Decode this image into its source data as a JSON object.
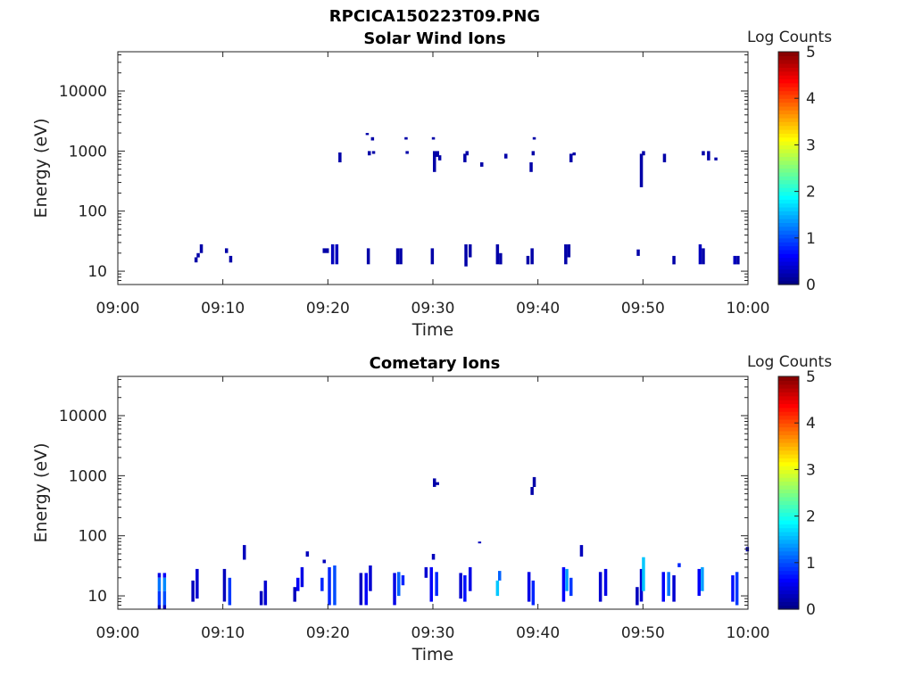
{
  "figure": {
    "title": "RPCICA150223T09.PNG"
  },
  "chart_data": [
    {
      "type": "heatmap",
      "title": "Solar Wind Ions",
      "xlabel": "Time",
      "ylabel": "Energy (eV)",
      "x_ticks": [
        "09:00",
        "09:10",
        "09:20",
        "09:30",
        "09:40",
        "09:50",
        "10:00"
      ],
      "y_ticks": [
        "10",
        "100",
        "1000",
        "10000"
      ],
      "x_range_minutes": [
        0,
        60
      ],
      "y_range": [
        6,
        45000
      ],
      "y_scale": "log",
      "colorbar": {
        "label": "Log Counts",
        "ticks": [
          "0",
          "1",
          "2",
          "3",
          "4",
          "5"
        ],
        "range": [
          0,
          5
        ],
        "colormap": "jet"
      },
      "cells": [
        [
          7.3,
          14,
          17,
          0.2
        ],
        [
          7.5,
          17,
          20,
          0.2
        ],
        [
          7.8,
          20,
          28,
          0.2
        ],
        [
          10.2,
          20,
          24,
          0.2
        ],
        [
          10.6,
          14,
          18,
          0.2
        ],
        [
          19.5,
          20,
          24,
          0.2
        ],
        [
          19.8,
          20,
          24,
          0.2
        ],
        [
          20.3,
          13,
          28,
          0.3
        ],
        [
          20.7,
          13,
          28,
          0.3
        ],
        [
          21.0,
          650,
          950,
          0.2
        ],
        [
          23.7,
          13,
          24,
          0.2
        ],
        [
          23.8,
          850,
          1000,
          0.2
        ],
        [
          23.6,
          1850,
          2000,
          0.2
        ],
        [
          24.1,
          1500,
          1700,
          0.2
        ],
        [
          24.2,
          900,
          1000,
          0.2
        ],
        [
          26.5,
          13,
          24,
          0.2
        ],
        [
          26.8,
          13,
          24,
          0.2
        ],
        [
          27.3,
          1550,
          1700,
          0.2
        ],
        [
          27.4,
          900,
          1000,
          0.2
        ],
        [
          29.8,
          13,
          24,
          0.2
        ],
        [
          29.9,
          1550,
          1700,
          0.2
        ],
        [
          30.0,
          450,
          1000,
          0.2
        ],
        [
          30.3,
          800,
          1000,
          0.2
        ],
        [
          30.5,
          700,
          850,
          0.2
        ],
        [
          33.0,
          12,
          28,
          0.2
        ],
        [
          33.4,
          17,
          28,
          0.2
        ],
        [
          32.9,
          650,
          900,
          0.2
        ],
        [
          33.1,
          850,
          1000,
          0.2
        ],
        [
          34.5,
          550,
          650,
          0.2
        ],
        [
          36.0,
          13,
          28,
          0.2
        ],
        [
          36.3,
          13,
          20,
          0.2
        ],
        [
          36.8,
          750,
          900,
          0.2
        ],
        [
          38.9,
          13,
          18,
          0.2
        ],
        [
          39.3,
          13,
          24,
          0.2
        ],
        [
          39.2,
          450,
          650,
          0.2
        ],
        [
          39.4,
          850,
          1000,
          0.2
        ],
        [
          39.5,
          1550,
          1700,
          0.2
        ],
        [
          42.5,
          13,
          28,
          0.2
        ],
        [
          42.8,
          17,
          28,
          0.2
        ],
        [
          43.0,
          650,
          900,
          0.2
        ],
        [
          43.3,
          850,
          950,
          0.2
        ],
        [
          49.4,
          18,
          23,
          0.2
        ],
        [
          49.7,
          250,
          900,
          0.2
        ],
        [
          49.9,
          850,
          1000,
          0.2
        ],
        [
          51.9,
          650,
          900,
          0.2
        ],
        [
          52.8,
          13,
          18,
          0.2
        ],
        [
          55.3,
          13,
          28,
          0.3
        ],
        [
          55.6,
          13,
          24,
          0.2
        ],
        [
          55.6,
          850,
          1000,
          0.2
        ],
        [
          56.1,
          700,
          1000,
          0.2
        ],
        [
          56.8,
          700,
          780,
          0.2
        ],
        [
          58.6,
          13,
          18,
          0.3
        ],
        [
          58.9,
          13,
          18,
          0.2
        ]
      ]
    },
    {
      "type": "heatmap",
      "title": "Cometary Ions",
      "xlabel": "Time",
      "ylabel": "Energy (eV)",
      "x_ticks": [
        "09:00",
        "09:10",
        "09:20",
        "09:30",
        "09:40",
        "09:50",
        "10:00"
      ],
      "y_ticks": [
        "10",
        "100",
        "1000",
        "10000"
      ],
      "x_range_minutes": [
        0,
        60
      ],
      "y_range": [
        6,
        45000
      ],
      "y_scale": "log",
      "colorbar": {
        "label": "Log Counts",
        "ticks": [
          "0",
          "1",
          "2",
          "3",
          "4",
          "5"
        ],
        "range": [
          0,
          5
        ],
        "colormap": "jet"
      },
      "cells": [
        [
          3.8,
          6,
          7,
          0.3
        ],
        [
          3.8,
          7,
          12,
          0.9
        ],
        [
          3.8,
          12,
          20,
          1.2
        ],
        [
          3.8,
          20,
          24,
          0.5
        ],
        [
          4.3,
          6,
          7,
          0.3
        ],
        [
          4.3,
          7,
          12,
          1.0
        ],
        [
          4.3,
          12,
          20,
          1.3
        ],
        [
          4.3,
          20,
          24,
          0.6
        ],
        [
          7.0,
          8,
          18,
          0.3
        ],
        [
          7.4,
          9,
          28,
          0.4
        ],
        [
          10.0,
          8,
          28,
          0.3
        ],
        [
          10.5,
          7,
          20,
          0.9
        ],
        [
          11.9,
          40,
          70,
          0.3
        ],
        [
          13.5,
          7,
          12,
          0.3
        ],
        [
          13.9,
          7,
          18,
          0.4
        ],
        [
          16.7,
          8,
          14,
          0.3
        ],
        [
          17.0,
          12,
          20,
          0.6
        ],
        [
          17.4,
          14,
          30,
          0.5
        ],
        [
          17.9,
          45,
          55,
          0.3
        ],
        [
          19.3,
          12,
          20,
          0.8
        ],
        [
          19.5,
          35,
          40,
          0.3
        ],
        [
          20.0,
          7,
          30,
          0.8
        ],
        [
          20.5,
          7,
          32,
          1.0
        ],
        [
          23.0,
          7,
          24,
          0.3
        ],
        [
          23.5,
          7,
          24,
          0.6
        ],
        [
          23.9,
          12,
          32,
          0.4
        ],
        [
          26.2,
          7,
          24,
          0.5
        ],
        [
          26.6,
          10,
          25,
          1.1
        ],
        [
          27.0,
          15,
          22,
          0.8
        ],
        [
          29.2,
          20,
          30,
          0.4
        ],
        [
          29.7,
          8,
          30,
          0.6
        ],
        [
          30.2,
          10,
          25,
          0.8
        ],
        [
          29.9,
          40,
          50,
          0.3
        ],
        [
          30.0,
          650,
          900,
          0.2
        ],
        [
          30.3,
          700,
          780,
          0.2
        ],
        [
          32.5,
          9,
          24,
          0.4
        ],
        [
          32.9,
          8,
          22,
          0.7
        ],
        [
          33.4,
          12,
          30,
          0.5
        ],
        [
          34.3,
          75,
          80,
          0.3
        ],
        [
          36.0,
          10,
          18,
          1.6
        ],
        [
          36.2,
          18,
          26,
          1.1
        ],
        [
          39.0,
          8,
          25,
          0.5
        ],
        [
          39.4,
          7,
          18,
          0.8
        ],
        [
          39.3,
          480,
          650,
          0.2
        ],
        [
          39.5,
          650,
          950,
          0.2
        ],
        [
          42.3,
          8,
          30,
          0.6
        ],
        [
          42.6,
          12,
          28,
          1.4
        ],
        [
          43.0,
          10,
          20,
          0.9
        ],
        [
          44.0,
          45,
          70,
          0.3
        ],
        [
          45.8,
          8,
          25,
          0.4
        ],
        [
          46.3,
          10,
          28,
          0.5
        ],
        [
          49.3,
          7,
          14,
          0.3
        ],
        [
          49.7,
          8,
          28,
          0.4
        ],
        [
          49.9,
          12,
          44,
          1.6
        ],
        [
          51.8,
          8,
          25,
          0.6
        ],
        [
          52.3,
          10,
          25,
          1.2
        ],
        [
          52.8,
          8,
          22,
          0.4
        ],
        [
          53.3,
          30,
          35,
          0.8
        ],
        [
          55.2,
          10,
          28,
          0.6
        ],
        [
          55.5,
          12,
          30,
          1.4
        ],
        [
          58.4,
          8,
          22,
          0.7
        ],
        [
          58.8,
          7,
          25,
          0.9
        ],
        [
          59.8,
          55,
          65,
          0.3
        ]
      ]
    }
  ]
}
